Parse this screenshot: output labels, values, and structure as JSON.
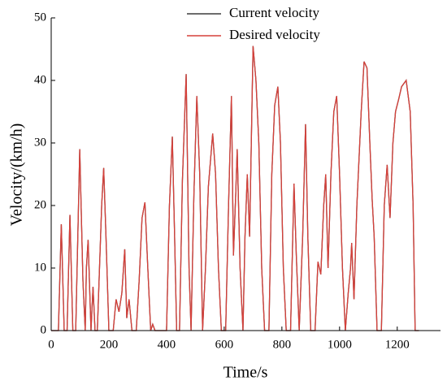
{
  "chart_data": {
    "type": "line",
    "xlabel": "Time/s",
    "ylabel": "Velocity/(km/h)",
    "xlim": [
      0,
      1350
    ],
    "ylim": [
      0,
      50
    ],
    "xticks": [
      0,
      200,
      400,
      600,
      800,
      1000,
      1200
    ],
    "yticks": [
      0,
      10,
      20,
      30,
      40,
      50
    ],
    "legend": "top",
    "x": [
      0,
      25,
      35,
      45,
      55,
      65,
      75,
      85,
      99,
      110,
      118,
      122,
      128,
      138,
      145,
      152,
      160,
      175,
      182,
      190,
      200,
      215,
      225,
      235,
      245,
      255,
      262,
      270,
      280,
      295,
      305,
      315,
      325,
      335,
      345,
      352,
      360,
      400,
      410,
      420,
      428,
      435,
      445,
      455,
      468,
      478,
      485,
      495,
      505,
      515,
      525,
      535,
      545,
      560,
      570,
      580,
      590,
      605,
      615,
      625,
      632,
      640,
      645,
      655,
      665,
      672,
      680,
      688,
      700,
      710,
      720,
      730,
      740,
      755,
      765,
      775,
      786,
      795,
      805,
      815,
      830,
      842,
      850,
      860,
      872,
      882,
      890,
      900,
      915,
      925,
      935,
      945,
      952,
      960,
      970,
      980,
      990,
      1000,
      1010,
      1020,
      1030,
      1038,
      1042,
      1050,
      1060,
      1075,
      1085,
      1095,
      1105,
      1113,
      1120,
      1130,
      1145,
      1155,
      1165,
      1175,
      1185,
      1194,
      1205,
      1215,
      1231,
      1245,
      1255,
      1262,
      1275
    ],
    "series": [
      {
        "name": "Current velocity",
        "color": "#3c3c3c",
        "values": [
          0,
          0,
          17,
          0,
          0,
          18.5,
          0,
          0,
          29,
          8,
          0,
          10,
          14.5,
          0,
          7,
          0,
          0,
          20,
          26,
          15,
          0,
          0,
          5,
          3,
          6,
          13,
          2,
          5,
          0,
          0,
          8,
          18,
          20.5,
          10,
          0,
          1,
          0,
          0,
          20,
          31,
          15,
          0,
          0,
          24,
          41,
          10,
          0,
          22,
          37.5,
          25,
          0,
          10,
          23,
          31.5,
          25,
          10,
          0,
          0,
          20,
          37.5,
          12,
          22,
          29,
          10,
          0,
          15,
          25,
          15,
          45.5,
          40,
          30,
          10,
          0,
          0,
          25,
          36,
          39,
          30,
          10,
          0,
          0,
          23.5,
          12,
          0,
          15,
          33,
          15,
          0,
          0,
          11,
          9,
          20,
          25,
          10,
          25,
          35,
          37.5,
          25,
          10,
          0,
          6,
          10,
          14,
          5,
          20,
          35,
          43,
          42,
          30,
          21,
          15,
          0,
          0,
          20,
          26.5,
          18,
          30,
          35,
          37,
          39,
          40,
          35,
          20,
          0,
          0
        ]
      },
      {
        "name": "Desired velocity",
        "color": "#d6403a",
        "values": [
          0,
          0,
          17,
          0,
          0,
          18.5,
          0,
          0,
          29,
          8,
          0,
          10,
          14.5,
          0,
          7,
          0,
          0,
          20,
          26,
          15,
          0,
          0,
          5,
          3,
          6,
          13,
          2,
          5,
          0,
          0,
          8,
          18,
          20.5,
          10,
          0,
          1,
          0,
          0,
          20,
          31,
          15,
          0,
          0,
          24,
          41,
          10,
          0,
          22,
          37.5,
          25,
          0,
          10,
          23,
          31.5,
          25,
          10,
          0,
          0,
          20,
          37.5,
          12,
          22,
          29,
          10,
          0,
          15,
          25,
          15,
          45.5,
          40,
          30,
          10,
          0,
          0,
          25,
          36,
          39,
          30,
          10,
          0,
          0,
          23.5,
          12,
          0,
          15,
          33,
          15,
          0,
          0,
          11,
          9,
          20,
          25,
          10,
          25,
          35,
          37.5,
          25,
          10,
          0,
          6,
          10,
          14,
          5,
          20,
          35,
          43,
          42,
          30,
          21,
          15,
          0,
          0,
          20,
          26.5,
          18,
          30,
          35,
          37,
          39,
          40,
          35,
          20,
          0,
          0
        ]
      }
    ]
  }
}
